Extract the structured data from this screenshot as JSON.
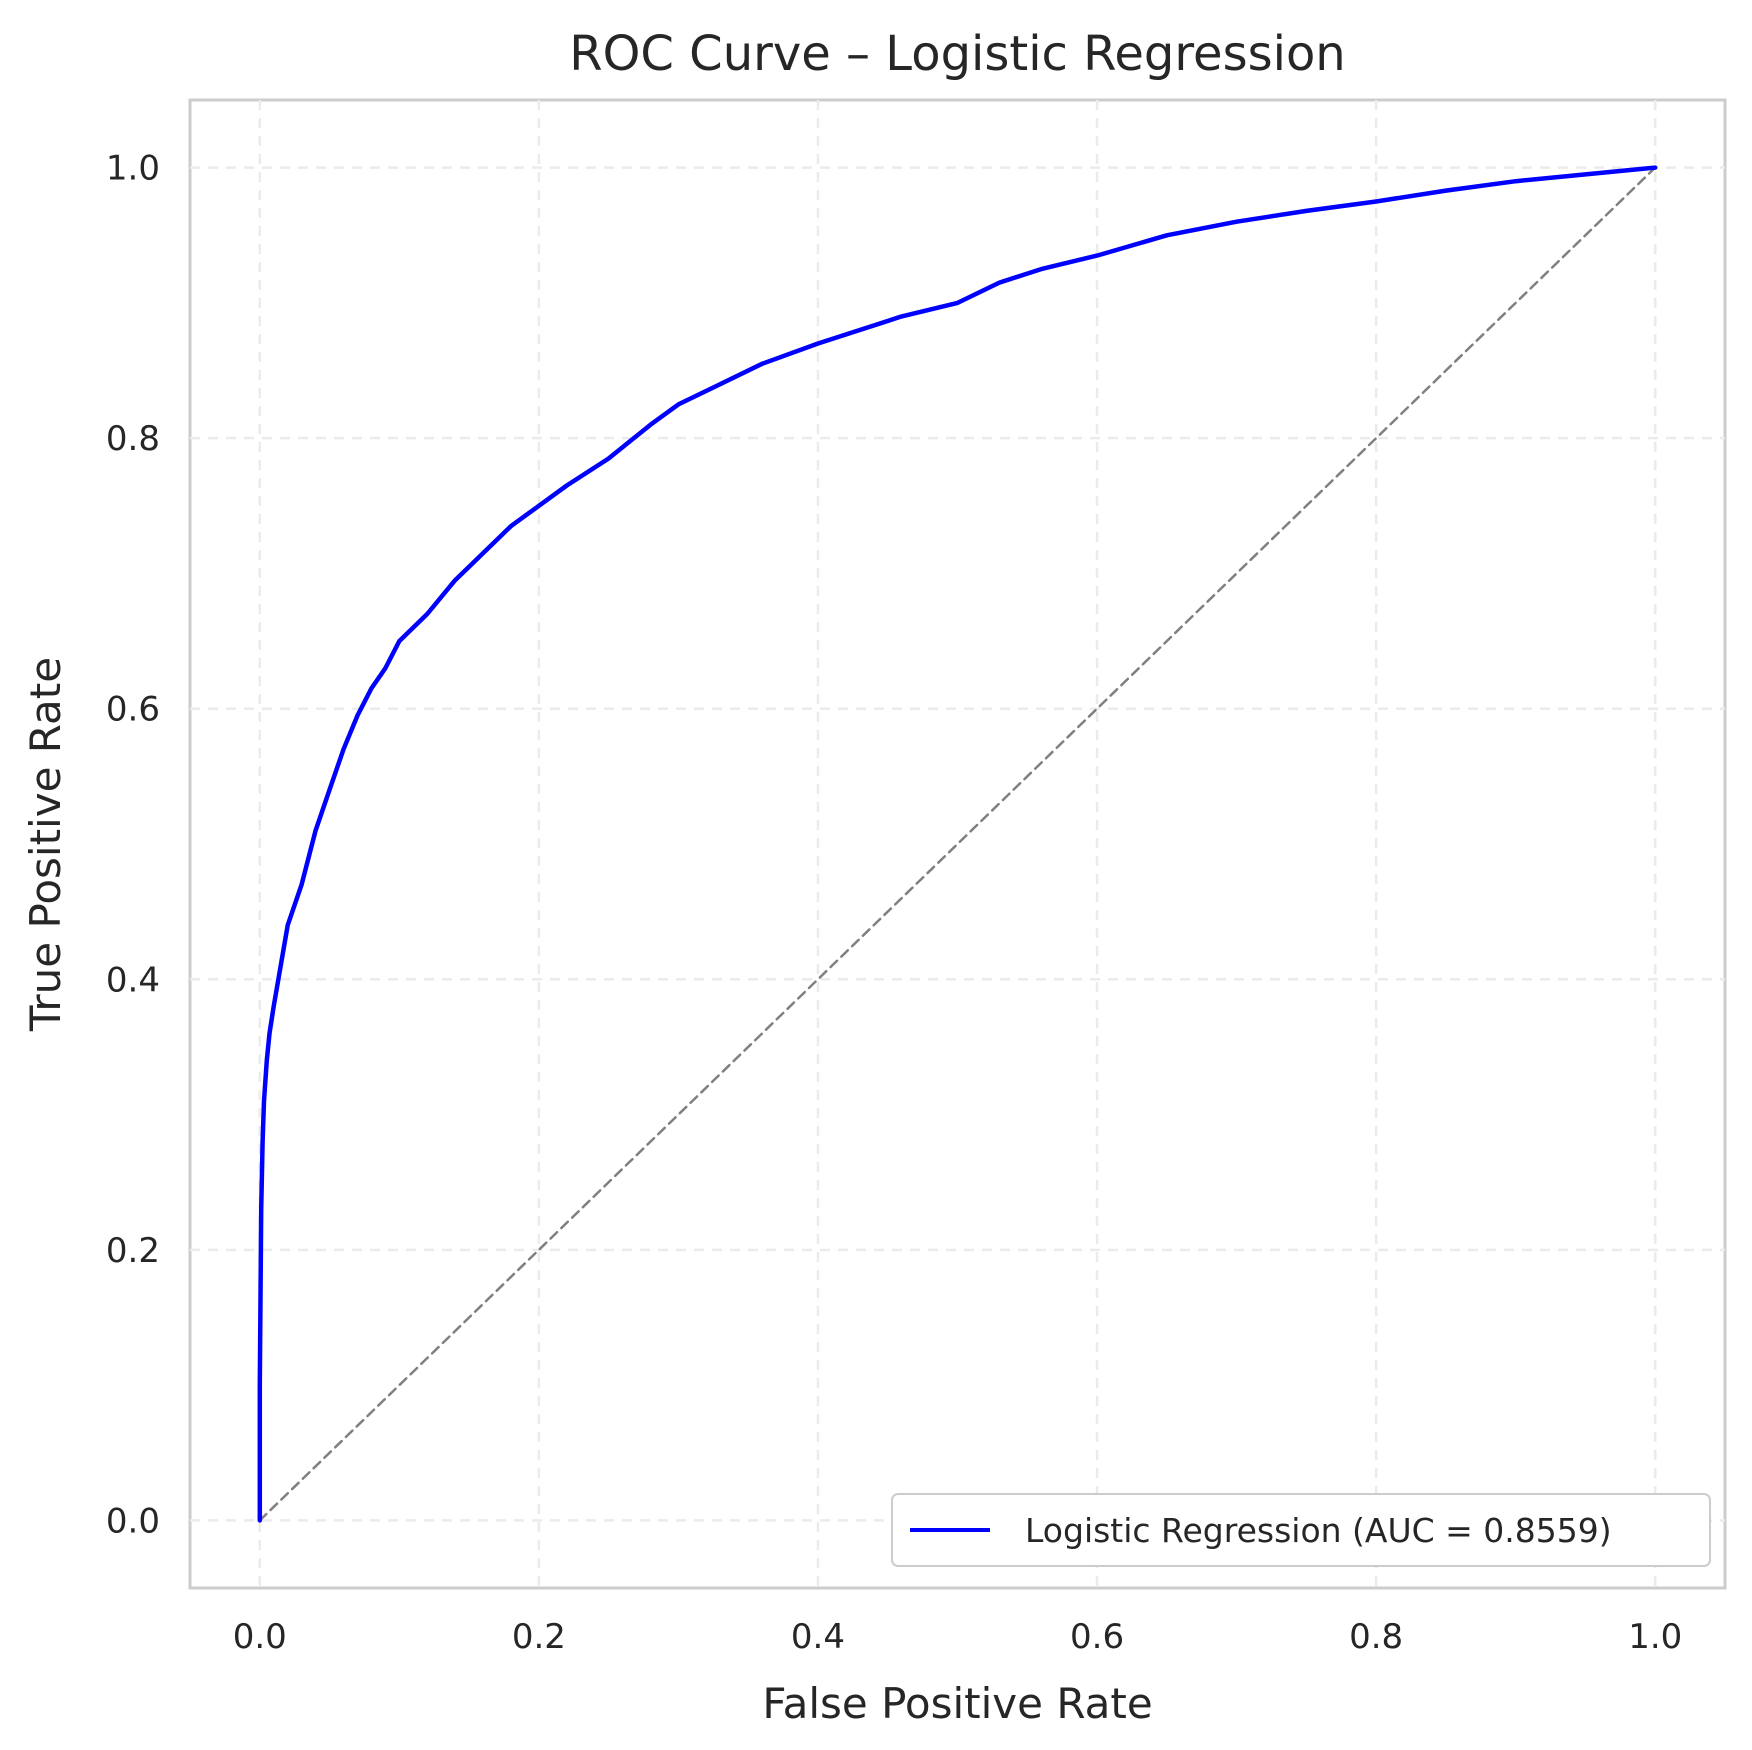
{
  "chart_data": {
    "type": "line",
    "title": "ROC Curve – Logistic Regression",
    "xlabel": "False Positive Rate",
    "ylabel": "True Positive Rate",
    "xlim": [
      -0.05,
      1.05
    ],
    "ylim": [
      -0.05,
      1.05
    ],
    "x_ticks": [
      "0.0",
      "0.2",
      "0.4",
      "0.6",
      "0.8",
      "1.0"
    ],
    "y_ticks": [
      "0.0",
      "0.2",
      "0.4",
      "0.6",
      "0.8",
      "1.0"
    ],
    "grid": true,
    "legend_position": "lower-right",
    "series": [
      {
        "name": "Logistic Regression (AUC = 0.8559)",
        "color": "#0000ff",
        "x": [
          0.0,
          0.0,
          0.001,
          0.002,
          0.003,
          0.005,
          0.007,
          0.01,
          0.015,
          0.02,
          0.03,
          0.04,
          0.05,
          0.06,
          0.07,
          0.08,
          0.09,
          0.1,
          0.12,
          0.14,
          0.16,
          0.18,
          0.2,
          0.22,
          0.25,
          0.28,
          0.3,
          0.33,
          0.36,
          0.4,
          0.43,
          0.46,
          0.48,
          0.5,
          0.53,
          0.56,
          0.6,
          0.65,
          0.7,
          0.75,
          0.8,
          0.85,
          0.9,
          0.95,
          1.0
        ],
        "y": [
          0.0,
          0.1,
          0.23,
          0.28,
          0.31,
          0.34,
          0.36,
          0.38,
          0.41,
          0.44,
          0.47,
          0.51,
          0.54,
          0.57,
          0.595,
          0.615,
          0.63,
          0.65,
          0.67,
          0.695,
          0.715,
          0.735,
          0.75,
          0.765,
          0.785,
          0.81,
          0.825,
          0.84,
          0.855,
          0.87,
          0.88,
          0.89,
          0.895,
          0.9,
          0.915,
          0.925,
          0.935,
          0.95,
          0.96,
          0.968,
          0.975,
          0.983,
          0.99,
          0.995,
          1.0
        ]
      },
      {
        "name": "",
        "color": "#808080",
        "style": "dashed",
        "x": [
          0.0,
          1.0
        ],
        "y": [
          0.0,
          1.0
        ]
      }
    ]
  }
}
